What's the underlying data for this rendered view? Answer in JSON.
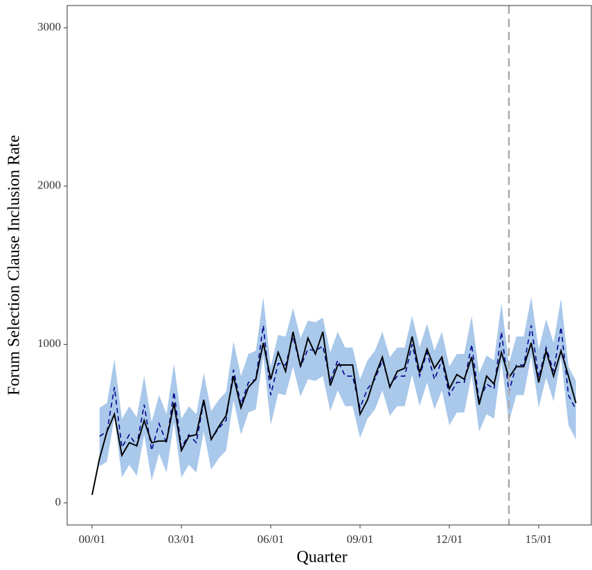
{
  "chart_data": {
    "type": "line",
    "x_label": "Quarter",
    "y_label": "Forum Selection Clause Inclusion Rate",
    "categories": [
      "00/01",
      "00/04",
      "00/07",
      "00/10",
      "01/01",
      "01/04",
      "01/07",
      "01/10",
      "02/01",
      "02/04",
      "02/07",
      "02/10",
      "03/01",
      "03/04",
      "03/07",
      "03/10",
      "04/01",
      "04/04",
      "04/07",
      "04/10",
      "05/01",
      "05/04",
      "05/07",
      "05/10",
      "06/01",
      "06/04",
      "06/07",
      "06/10",
      "07/01",
      "07/04",
      "07/07",
      "07/10",
      "08/01",
      "08/04",
      "08/07",
      "08/10",
      "09/01",
      "09/04",
      "09/07",
      "09/10",
      "10/01",
      "10/04",
      "10/07",
      "10/10",
      "11/01",
      "11/04",
      "11/07",
      "11/10",
      "12/01",
      "12/04",
      "12/07",
      "12/10",
      "13/01",
      "13/04",
      "13/07",
      "13/10",
      "14/01",
      "14/04",
      "14/07",
      "14/10",
      "15/01",
      "15/04",
      "15/07",
      "15/10",
      "16/01",
      "16/04"
    ],
    "xticks": [
      "00/01",
      "03/01",
      "06/01",
      "09/01",
      "12/01",
      "15/01"
    ],
    "vline": "14/01",
    "vline_color": "#aaaaaa",
    "ylim": [
      -140,
      3140
    ],
    "yticks": [
      0,
      1000,
      2000,
      3000
    ],
    "band": {
      "color": "#a9c8ea",
      "upper": [
        null,
        600,
        630,
        910,
        530,
        610,
        540,
        800,
        510,
        680,
        560,
        880,
        530,
        610,
        560,
        820,
        580,
        650,
        700,
        1020,
        800,
        940,
        960,
        1300,
        860,
        1060,
        1050,
        1230,
        1040,
        1150,
        1140,
        1170,
        950,
        1080,
        980,
        980,
        780,
        900,
        960,
        1080,
        920,
        980,
        980,
        1180,
        980,
        1130,
        960,
        1080,
        860,
        940,
        940,
        1180,
        820,
        930,
        900,
        1260,
        880,
        1050,
        1050,
        1300,
        970,
        1160,
        1010,
        1290,
        860,
        770
      ],
      "lower": [
        null,
        230,
        260,
        540,
        160,
        240,
        170,
        430,
        140,
        310,
        190,
        510,
        160,
        240,
        190,
        450,
        210,
        280,
        330,
        650,
        430,
        570,
        590,
        930,
        490,
        690,
        680,
        860,
        670,
        780,
        770,
        800,
        580,
        710,
        610,
        610,
        410,
        530,
        590,
        710,
        550,
        610,
        610,
        810,
        610,
        760,
        590,
        710,
        490,
        570,
        570,
        810,
        450,
        560,
        530,
        890,
        510,
        680,
        680,
        930,
        600,
        790,
        640,
        920,
        490,
        400
      ]
    },
    "series": [
      {
        "color": "#000000",
        "dash": false,
        "values": [
          50,
          280,
          450,
          560,
          300,
          380,
          360,
          520,
          380,
          390,
          390,
          630,
          330,
          420,
          430,
          650,
          400,
          480,
          550,
          800,
          600,
          730,
          780,
          1010,
          780,
          950,
          830,
          1080,
          860,
          1040,
          940,
          1080,
          740,
          870,
          870,
          870,
          560,
          650,
          800,
          920,
          730,
          830,
          850,
          1050,
          820,
          970,
          850,
          920,
          720,
          810,
          780,
          920,
          620,
          800,
          750,
          950,
          790,
          860,
          860,
          1010,
          760,
          960,
          800,
          960,
          800,
          630
        ]
      },
      {
        "color": "#00008b",
        "dash": true,
        "values": [
          null,
          420,
          450,
          730,
          350,
          430,
          360,
          620,
          330,
          500,
          380,
          700,
          350,
          430,
          380,
          640,
          400,
          470,
          520,
          840,
          620,
          760,
          780,
          1120,
          680,
          880,
          870,
          1050,
          860,
          970,
          960,
          990,
          770,
          900,
          800,
          800,
          600,
          720,
          780,
          900,
          740,
          800,
          800,
          1000,
          800,
          950,
          780,
          900,
          680,
          760,
          760,
          1000,
          640,
          750,
          720,
          1080,
          700,
          870,
          870,
          1120,
          790,
          980,
          830,
          1110,
          680,
          590
        ]
      }
    ]
  }
}
